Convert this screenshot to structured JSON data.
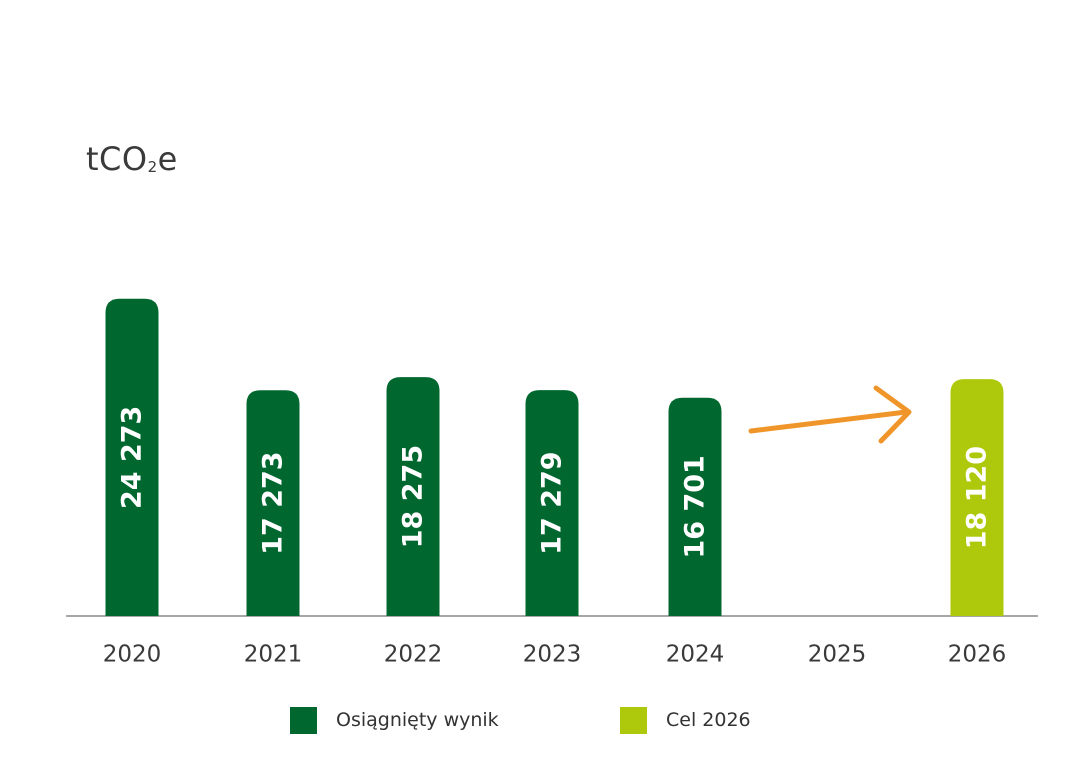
{
  "chart_data": {
    "type": "bar",
    "ylabel_parts": {
      "main": "tCO",
      "sub": "2",
      "tail": "e"
    },
    "categories": [
      "2020",
      "2021",
      "2022",
      "2023",
      "2024",
      "2025",
      "2026"
    ],
    "series": [
      {
        "name": "Osiągnięty wynik",
        "color": "#00672f",
        "values": [
          24273,
          17273,
          18275,
          17279,
          16701,
          null,
          null
        ]
      },
      {
        "name": "Cel 2026",
        "color": "#aec90b",
        "values": [
          null,
          null,
          null,
          null,
          null,
          null,
          18120
        ]
      }
    ],
    "data_labels": [
      "24 273",
      "17 273",
      "18 275",
      "17 279",
      "16 701",
      "",
      "18 120"
    ],
    "ylim": [
      0,
      28000
    ],
    "grid": false,
    "legend_position": "bottom",
    "annotation": {
      "type": "arrow",
      "from_category": "2024",
      "to_category": "2026",
      "color": "#f0952a"
    }
  }
}
